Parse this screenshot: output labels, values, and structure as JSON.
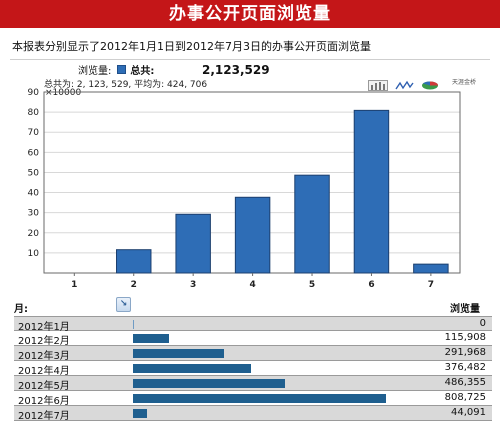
{
  "header": {
    "title": "办事公开页面浏览量"
  },
  "description": "本报表分别显示了2012年1月1日到2012年7月3日的办事公开页面浏览量",
  "legend": {
    "series_label": "浏览量:",
    "total_label": "总共:",
    "total_value": "2,123,529",
    "swatch_color": "#2e6db6"
  },
  "summary": "总共为: 2, 123, 529, 平均为: 424, 706",
  "toolbar": {
    "brand_label": "天涯金桥"
  },
  "chart_data": {
    "type": "bar",
    "unit_label": "×10000",
    "categories": [
      "1",
      "2",
      "3",
      "4",
      "5",
      "6",
      "7"
    ],
    "values": [
      0.0,
      11.59,
      29.2,
      37.65,
      48.64,
      80.87,
      4.41
    ],
    "ylim": [
      0,
      90
    ],
    "yticks": [
      10,
      20,
      30,
      40,
      50,
      60,
      70,
      80,
      90
    ],
    "grid": true,
    "bar_color": "#2e6db6"
  },
  "table": {
    "headers": {
      "month": "月:",
      "views": "浏览量"
    },
    "max_value": 808725,
    "rows": [
      {
        "month": "2012年1月",
        "value": 0,
        "display": "0"
      },
      {
        "month": "2012年2月",
        "value": 115908,
        "display": "115,908"
      },
      {
        "month": "2012年3月",
        "value": 291968,
        "display": "291,968"
      },
      {
        "month": "2012年4月",
        "value": 376482,
        "display": "376,482"
      },
      {
        "month": "2012年5月",
        "value": 486355,
        "display": "486,355"
      },
      {
        "month": "2012年6月",
        "value": 808725,
        "display": "808,725"
      },
      {
        "month": "2012年7月",
        "value": 44091,
        "display": "44,091"
      }
    ]
  }
}
